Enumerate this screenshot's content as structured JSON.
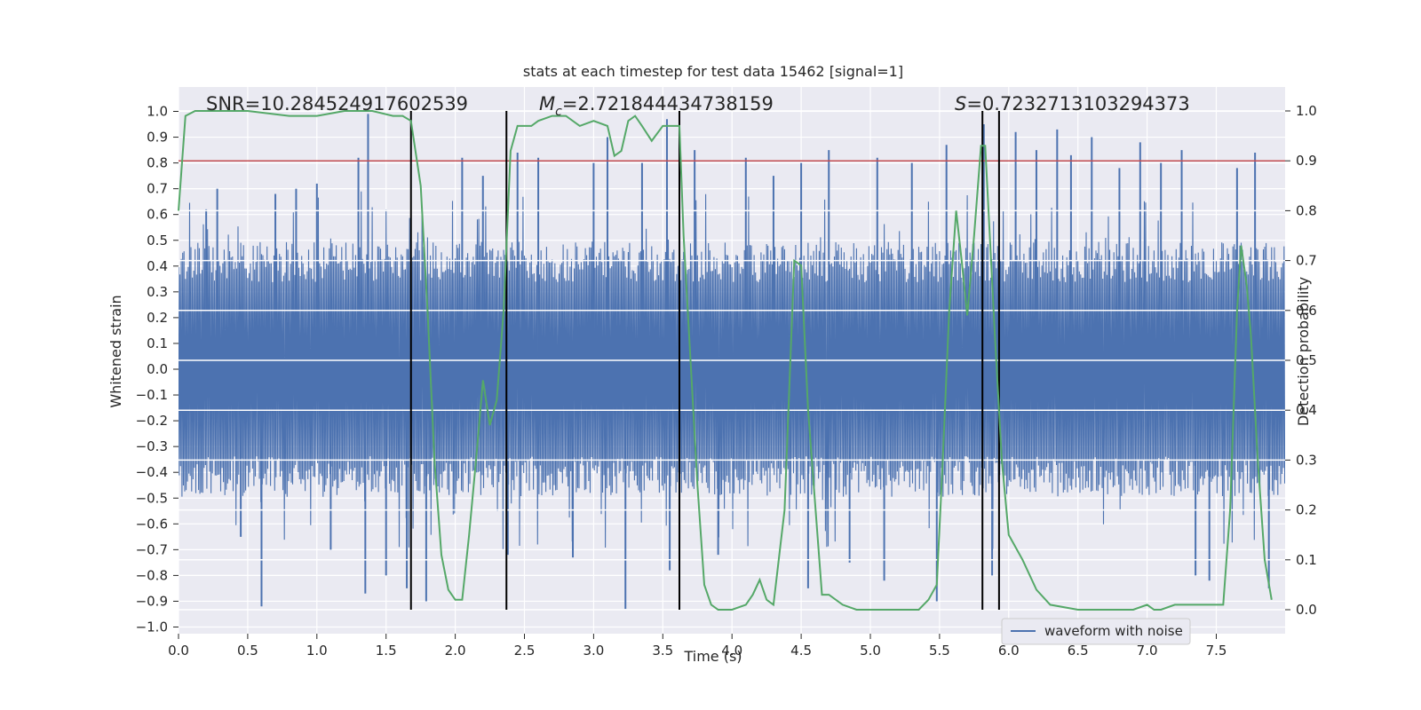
{
  "chart_data": {
    "type": "line",
    "title": "stats at each timestep for test data 15462 [signal=1]",
    "xlabel": "Time (s)",
    "ylabel_left": "Whitened strain",
    "ylabel_right": "Detection probability",
    "xlim": [
      0.0,
      8.0
    ],
    "ylim_left": [
      -1.05,
      1.05
    ],
    "ylim_right": [
      -0.045,
      1.045
    ],
    "x_ticks": [
      "0.0",
      "0.5",
      "1.0",
      "1.5",
      "2.0",
      "2.5",
      "3.0",
      "3.5",
      "4.0",
      "4.5",
      "5.0",
      "5.5",
      "6.0",
      "6.5",
      "7.0",
      "7.5"
    ],
    "y_left_ticks": [
      "1.0",
      "0.9",
      "0.8",
      "0.7",
      "0.6",
      "0.5",
      "0.4",
      "0.3",
      "0.2",
      "0.1",
      "0.0",
      "−0.1",
      "−0.2",
      "−0.3",
      "−0.4",
      "−0.5",
      "−0.6",
      "−0.7",
      "−0.8",
      "−0.9",
      "−1.0"
    ],
    "y_right_ticks": [
      "1.0",
      "0.9",
      "0.8",
      "0.7",
      "0.6",
      "0.5",
      "0.4",
      "0.3",
      "0.2",
      "0.1",
      "0.0"
    ],
    "grid": true,
    "annotations": {
      "snr": "SNR=10.284524917602539",
      "mc_symbol": "M",
      "mc_sub": "c",
      "mc_value": "=2.721844434738159",
      "s_symbol": "S",
      "s_value": "=0.7232713103294373"
    },
    "legend": {
      "label": "waveform with noise",
      "location": "lower-right"
    },
    "colors": {
      "waveform": "#4c72b0",
      "probability": "#55a868",
      "threshold": "#c44e52",
      "markers": "#000000",
      "background": "#eaeaf2",
      "grid": "#ffffff"
    },
    "threshold": 0.9,
    "vertical_markers": [
      1.68,
      2.37,
      3.62,
      5.81,
      5.93
    ],
    "waveform_envelope": {
      "typical_amplitude": 0.45,
      "spikes": [
        {
          "x": 0.2,
          "y": 0.62
        },
        {
          "x": 0.28,
          "y": 0.7
        },
        {
          "x": 0.45,
          "y": -0.65
        },
        {
          "x": 0.6,
          "y": -0.92
        },
        {
          "x": 0.7,
          "y": 0.68
        },
        {
          "x": 0.85,
          "y": 0.7
        },
        {
          "x": 1.0,
          "y": 0.72
        },
        {
          "x": 1.1,
          "y": -0.7
        },
        {
          "x": 1.3,
          "y": 0.82
        },
        {
          "x": 1.35,
          "y": -0.87
        },
        {
          "x": 1.37,
          "y": 0.99
        },
        {
          "x": 1.5,
          "y": -0.8
        },
        {
          "x": 1.65,
          "y": -0.85
        },
        {
          "x": 1.79,
          "y": -0.9
        },
        {
          "x": 2.05,
          "y": 0.82
        },
        {
          "x": 2.2,
          "y": 0.75
        },
        {
          "x": 2.38,
          "y": -0.72
        },
        {
          "x": 2.45,
          "y": 0.84
        },
        {
          "x": 2.6,
          "y": 0.82
        },
        {
          "x": 2.85,
          "y": -0.73
        },
        {
          "x": 3.0,
          "y": 0.8
        },
        {
          "x": 3.1,
          "y": 0.9
        },
        {
          "x": 3.23,
          "y": -0.93
        },
        {
          "x": 3.35,
          "y": 0.8
        },
        {
          "x": 3.53,
          "y": 0.97
        },
        {
          "x": 3.55,
          "y": -0.78
        },
        {
          "x": 3.73,
          "y": 0.85
        },
        {
          "x": 3.9,
          "y": -0.72
        },
        {
          "x": 4.1,
          "y": 0.82
        },
        {
          "x": 4.3,
          "y": 0.75
        },
        {
          "x": 4.5,
          "y": 0.8
        },
        {
          "x": 4.55,
          "y": -0.85
        },
        {
          "x": 4.7,
          "y": 0.85
        },
        {
          "x": 4.85,
          "y": -0.75
        },
        {
          "x": 5.05,
          "y": 0.82
        },
        {
          "x": 5.1,
          "y": -0.82
        },
        {
          "x": 5.3,
          "y": 0.8
        },
        {
          "x": 5.48,
          "y": -0.9
        },
        {
          "x": 5.55,
          "y": 0.87
        },
        {
          "x": 5.82,
          "y": 0.95
        },
        {
          "x": 5.88,
          "y": -0.8
        },
        {
          "x": 6.05,
          "y": 0.92
        },
        {
          "x": 6.2,
          "y": 0.85
        },
        {
          "x": 6.35,
          "y": 0.93
        },
        {
          "x": 6.45,
          "y": 0.83
        },
        {
          "x": 6.6,
          "y": 0.9
        },
        {
          "x": 6.8,
          "y": 0.78
        },
        {
          "x": 6.95,
          "y": 0.88
        },
        {
          "x": 7.1,
          "y": 0.8
        },
        {
          "x": 7.25,
          "y": 0.85
        },
        {
          "x": 7.35,
          "y": -0.8
        },
        {
          "x": 7.45,
          "y": -0.82
        },
        {
          "x": 7.65,
          "y": 0.78
        },
        {
          "x": 7.78,
          "y": 0.84
        },
        {
          "x": 7.88,
          "y": -0.85
        }
      ]
    },
    "probability_series": {
      "x": [
        0.0,
        0.05,
        0.12,
        0.2,
        0.3,
        0.5,
        0.8,
        1.0,
        1.2,
        1.4,
        1.55,
        1.62,
        1.68,
        1.75,
        1.8,
        1.85,
        1.9,
        1.95,
        2.0,
        2.05,
        2.1,
        2.15,
        2.2,
        2.25,
        2.3,
        2.35,
        2.4,
        2.45,
        2.5,
        2.55,
        2.6,
        2.7,
        2.8,
        2.9,
        3.0,
        3.1,
        3.15,
        3.2,
        3.25,
        3.3,
        3.35,
        3.42,
        3.5,
        3.55,
        3.62,
        3.65,
        3.7,
        3.75,
        3.8,
        3.85,
        3.9,
        4.0,
        4.1,
        4.15,
        4.2,
        4.25,
        4.3,
        4.38,
        4.45,
        4.5,
        4.55,
        4.65,
        4.7,
        4.8,
        4.9,
        5.0,
        5.2,
        5.35,
        5.42,
        5.48,
        5.52,
        5.57,
        5.62,
        5.66,
        5.7,
        5.75,
        5.8,
        5.83,
        5.9,
        5.95,
        6.0,
        6.1,
        6.2,
        6.3,
        6.5,
        6.7,
        6.9,
        7.0,
        7.05,
        7.1,
        7.2,
        7.35,
        7.45,
        7.55,
        7.6,
        7.65,
        7.68,
        7.72,
        7.75,
        7.8,
        7.85,
        7.9
      ],
      "y": [
        0.8,
        0.99,
        1.0,
        1.0,
        1.0,
        1.0,
        0.99,
        0.99,
        1.0,
        1.0,
        0.99,
        0.99,
        0.98,
        0.85,
        0.6,
        0.3,
        0.11,
        0.04,
        0.02,
        0.02,
        0.15,
        0.3,
        0.46,
        0.37,
        0.42,
        0.6,
        0.92,
        0.97,
        0.97,
        0.97,
        0.98,
        0.99,
        0.99,
        0.97,
        0.98,
        0.97,
        0.91,
        0.92,
        0.98,
        0.99,
        0.97,
        0.94,
        0.97,
        0.97,
        0.97,
        0.75,
        0.5,
        0.25,
        0.05,
        0.01,
        0.0,
        0.0,
        0.01,
        0.03,
        0.06,
        0.02,
        0.01,
        0.2,
        0.7,
        0.69,
        0.4,
        0.03,
        0.03,
        0.01,
        0.0,
        0.0,
        0.0,
        0.0,
        0.02,
        0.05,
        0.28,
        0.6,
        0.8,
        0.7,
        0.59,
        0.75,
        0.93,
        0.93,
        0.55,
        0.3,
        0.15,
        0.1,
        0.04,
        0.01,
        0.0,
        0.0,
        0.0,
        0.01,
        0.0,
        0.0,
        0.01,
        0.01,
        0.01,
        0.01,
        0.2,
        0.6,
        0.73,
        0.65,
        0.55,
        0.3,
        0.1,
        0.02
      ]
    }
  }
}
